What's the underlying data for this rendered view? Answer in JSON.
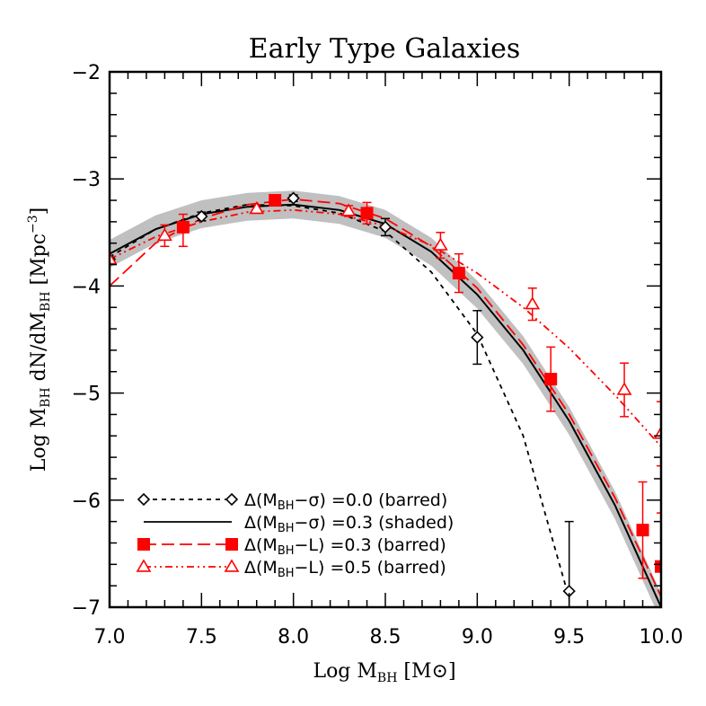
{
  "chart_data": {
    "type": "line",
    "title": "Early Type Galaxies",
    "xlabel": {
      "prefix": "Log M",
      "sub": "BH",
      "suffix": " [M⊙]"
    },
    "ylabel": {
      "prefix": "Log M",
      "sub1": "BH",
      "middle": " dN/dM",
      "sub2": "BH",
      "end": " [Mpc",
      "sup": "−3",
      "close": "]"
    },
    "xlim": [
      7.0,
      10.0
    ],
    "ylim": [
      -7.0,
      -2.0
    ],
    "xticks": [
      7.0,
      7.5,
      8.0,
      8.5,
      9.0,
      9.5,
      10.0
    ],
    "xtick_labels": [
      "7.0",
      "7.5",
      "8.0",
      "8.5",
      "9.0",
      "9.5",
      "10.0"
    ],
    "yticks": [
      -7,
      -6,
      -5,
      -4,
      -3,
      -2
    ],
    "ytick_labels": [
      "−7",
      "−6",
      "−5",
      "−4",
      "−3",
      "−2"
    ],
    "legend_position": "bottom-left",
    "series": [
      {
        "id": "sigma00",
        "color": "#000000",
        "marker": "diamond",
        "line": "dashed",
        "legend": {
          "pre": "Δ(M",
          "sub": "BH",
          "post": "−σ) =0.0 (barred)"
        },
        "x": [
          7.0,
          7.5,
          8.0,
          8.5,
          9.0,
          9.5
        ],
        "y": [
          -3.75,
          -3.35,
          -3.18,
          -3.45,
          -4.48,
          -6.85
        ],
        "err_low": [
          0,
          0.04,
          0.03,
          0.08,
          0.25,
          0.65
        ],
        "err_high": [
          0,
          0.04,
          0.03,
          0.08,
          0.25,
          0.65
        ],
        "curve_x": [
          7.0,
          7.25,
          7.5,
          7.75,
          8.0,
          8.25,
          8.5,
          8.75,
          9.0,
          9.25,
          9.5
        ],
        "curve_y": [
          -3.73,
          -3.47,
          -3.32,
          -3.24,
          -3.25,
          -3.32,
          -3.49,
          -3.87,
          -4.45,
          -5.4,
          -6.92
        ]
      },
      {
        "id": "sigma03",
        "color": "#000000",
        "marker": "none",
        "line": "solid",
        "band": true,
        "band_width": 0.13,
        "legend": {
          "pre": "Δ(M",
          "sub": "BH",
          "post": "−σ) =0.3 (shaded)"
        },
        "curve_x": [
          7.0,
          7.25,
          7.5,
          7.75,
          8.0,
          8.25,
          8.5,
          8.75,
          9.0,
          9.25,
          9.5,
          9.75,
          10.0
        ],
        "curve_y": [
          -3.7,
          -3.47,
          -3.33,
          -3.26,
          -3.24,
          -3.29,
          -3.42,
          -3.68,
          -4.08,
          -4.6,
          -5.26,
          -6.05,
          -7.0
        ]
      },
      {
        "id": "L03",
        "color": "#ff0000",
        "marker": "square",
        "line": "longdash",
        "legend": {
          "pre": "Δ(M",
          "sub": "BH",
          "post": "−L) =0.3 (barred)"
        },
        "x": [
          7.4,
          7.9,
          8.4,
          8.9,
          9.4,
          9.9,
          10.0
        ],
        "y": [
          -3.45,
          -3.2,
          -3.32,
          -3.88,
          -4.87,
          -6.28,
          -6.62
        ],
        "err_low": [
          0.18,
          0.04,
          0.1,
          0.18,
          0.3,
          0.45,
          0.5
        ],
        "err_high": [
          0.12,
          0.04,
          0.1,
          0.18,
          0.3,
          0.45,
          0.5
        ],
        "curve_x": [
          7.0,
          7.25,
          7.5,
          7.75,
          8.0,
          8.25,
          8.5,
          8.75,
          9.0,
          9.25,
          9.5,
          9.75,
          10.0
        ],
        "curve_y": [
          -4.0,
          -3.6,
          -3.37,
          -3.24,
          -3.19,
          -3.23,
          -3.37,
          -3.63,
          -4.02,
          -4.55,
          -5.2,
          -5.98,
          -6.9
        ]
      },
      {
        "id": "L05",
        "color": "#ff0000",
        "marker": "triangle",
        "line": "dashdot",
        "legend": {
          "pre": "Δ(M",
          "sub": "BH",
          "post": "−L) =0.5 (barred)"
        },
        "x": [
          7.0,
          7.3,
          7.8,
          8.3,
          8.8,
          9.3,
          9.8,
          10.0
        ],
        "y": [
          -3.75,
          -3.53,
          -3.28,
          -3.3,
          -3.62,
          -4.17,
          -4.97,
          -5.38
        ],
        "err_low": [
          0,
          0.1,
          0.04,
          0.05,
          0.12,
          0.15,
          0.25,
          0.3
        ],
        "err_high": [
          0,
          0.1,
          0.04,
          0.05,
          0.12,
          0.15,
          0.25,
          0.3
        ],
        "curve_x": [
          7.0,
          7.25,
          7.5,
          7.75,
          8.0,
          8.25,
          8.5,
          8.75,
          9.0,
          9.25,
          9.5,
          9.75,
          10.0
        ],
        "curve_y": [
          -3.75,
          -3.54,
          -3.4,
          -3.31,
          -3.29,
          -3.33,
          -3.44,
          -3.62,
          -3.88,
          -4.2,
          -4.58,
          -5.02,
          -5.5
        ]
      }
    ]
  }
}
